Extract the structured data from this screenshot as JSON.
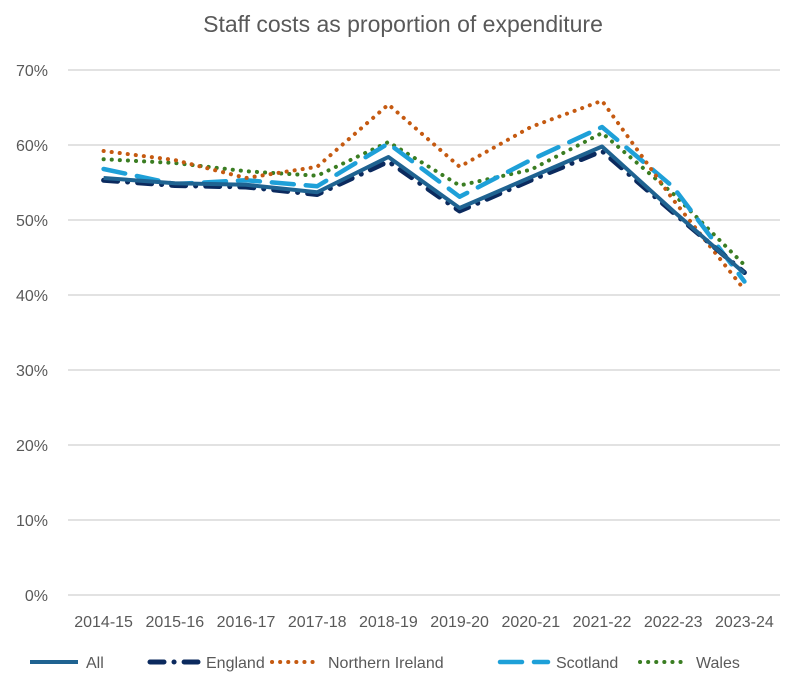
{
  "chart_data": {
    "type": "line",
    "title": "Staff costs as proportion of expenditure",
    "xlabel": "",
    "ylabel": "",
    "categories": [
      "2014-15",
      "2015-16",
      "2016-17",
      "2017-18",
      "2018-19",
      "2019-20",
      "2020-21",
      "2021-22",
      "2022-23",
      "2023-24"
    ],
    "ylim": [
      0,
      70
    ],
    "yticks": [
      0,
      10,
      20,
      30,
      40,
      50,
      60,
      70
    ],
    "ytick_labels": [
      "0%",
      "10%",
      "20%",
      "30%",
      "40%",
      "50%",
      "60%",
      "70%"
    ],
    "grid": true,
    "legend_position": "bottom",
    "series": [
      {
        "name": "All",
        "color": "#1f6391",
        "style": "solid",
        "values": [
          55.6,
          54.9,
          54.7,
          53.7,
          58.4,
          51.6,
          55.7,
          59.8,
          51.2,
          42.9
        ]
      },
      {
        "name": "England",
        "color": "#0b2a5e",
        "style": "dashdot",
        "values": [
          55.3,
          54.6,
          54.4,
          53.4,
          57.8,
          51.2,
          55.3,
          59.2,
          51.0,
          43.0
        ]
      },
      {
        "name": "Northern Ireland",
        "color": "#c55a11",
        "style": "dotted",
        "values": [
          59.2,
          58.0,
          55.6,
          57.1,
          65.4,
          57.1,
          62.4,
          65.9,
          52.7,
          40.7
        ]
      },
      {
        "name": "Scotland",
        "color": "#1ea0d8",
        "style": "dashed",
        "values": [
          56.8,
          54.8,
          55.3,
          54.5,
          60.2,
          53.1,
          58.0,
          62.4,
          54.4,
          41.8
        ]
      },
      {
        "name": "Wales",
        "color": "#3a7d22",
        "style": "dotted",
        "values": [
          58.1,
          57.6,
          56.5,
          55.9,
          60.4,
          54.6,
          56.7,
          61.6,
          53.5,
          44.0
        ]
      }
    ]
  }
}
